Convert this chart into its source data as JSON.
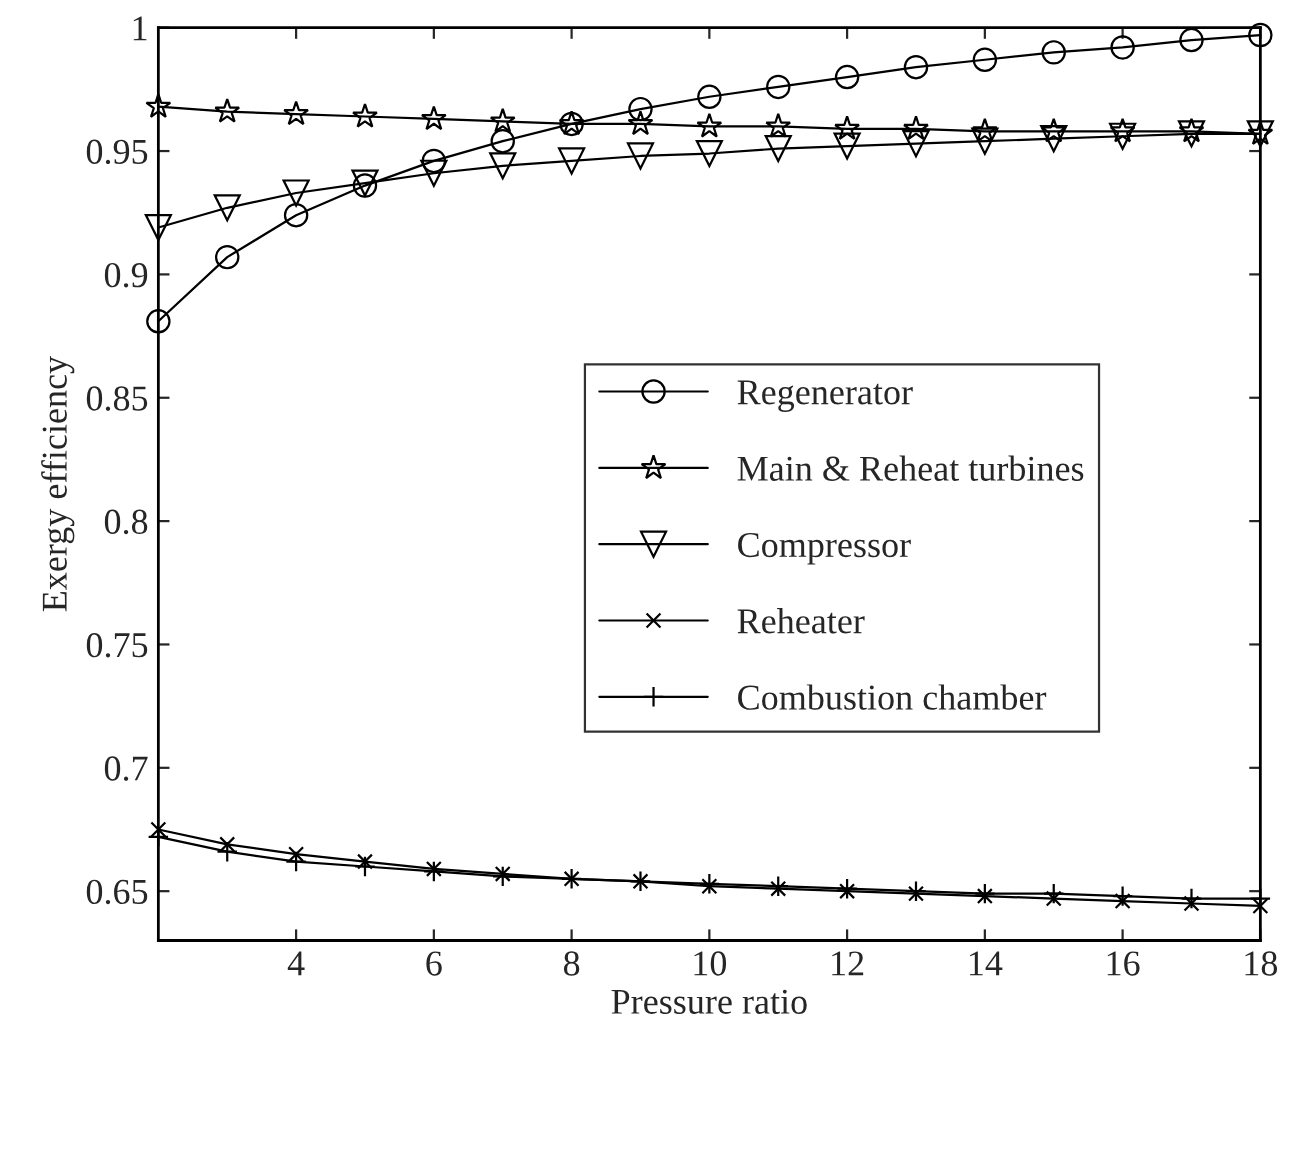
{
  "chart_data": {
    "type": "line",
    "xlabel": "Pressure ratio",
    "ylabel": "Exergy efficiency",
    "x": [
      2,
      3,
      4,
      5,
      6,
      7,
      8,
      9,
      10,
      11,
      12,
      13,
      14,
      15,
      16,
      17,
      18
    ],
    "xlim": [
      2,
      18
    ],
    "xticks": [
      4,
      6,
      8,
      10,
      12,
      14,
      16,
      18
    ],
    "ylim": [
      0.63,
      1
    ],
    "yticks": [
      0.65,
      0.7,
      0.75,
      0.8,
      0.85,
      0.9,
      0.95,
      {
        "value": 1,
        "label": "1"
      }
    ],
    "grid": false,
    "legend": "right",
    "line_style": "solid",
    "series": [
      {
        "name": "Regenerator",
        "color": "#000000",
        "marker": "circle",
        "values": [
          0.881,
          0.907,
          0.924,
          0.936,
          0.946,
          0.954,
          0.961,
          0.967,
          0.972,
          0.976,
          0.98,
          0.984,
          0.987,
          0.99,
          0.992,
          0.995,
          0.997
        ]
      },
      {
        "name": "Main & Reheat turbines",
        "color": "#000000",
        "marker": "star",
        "values": [
          0.968,
          0.966,
          0.965,
          0.964,
          0.963,
          0.962,
          0.961,
          0.961,
          0.96,
          0.96,
          0.959,
          0.959,
          0.958,
          0.958,
          0.958,
          0.958,
          0.957
        ]
      },
      {
        "name": "Compressor",
        "color": "#000000",
        "marker": "triangle",
        "values": [
          0.919,
          0.927,
          0.933,
          0.937,
          0.941,
          0.944,
          0.946,
          0.948,
          0.949,
          0.951,
          0.952,
          0.953,
          0.954,
          0.955,
          0.956,
          0.957,
          0.957
        ]
      },
      {
        "name": "Reheater",
        "color": "#000000",
        "marker": "cross",
        "values": [
          0.675,
          0.669,
          0.665,
          0.662,
          0.659,
          0.657,
          0.655,
          0.654,
          0.652,
          0.651,
          0.65,
          0.649,
          0.648,
          0.647,
          0.646,
          0.645,
          0.644
        ]
      },
      {
        "name": "Combustion chamber",
        "color": "#000000",
        "marker": "plus",
        "values": [
          0.672,
          0.666,
          0.662,
          0.66,
          0.658,
          0.656,
          0.655,
          0.654,
          0.653,
          0.652,
          0.651,
          0.65,
          0.649,
          0.649,
          0.648,
          0.647,
          0.647
        ]
      }
    ]
  }
}
